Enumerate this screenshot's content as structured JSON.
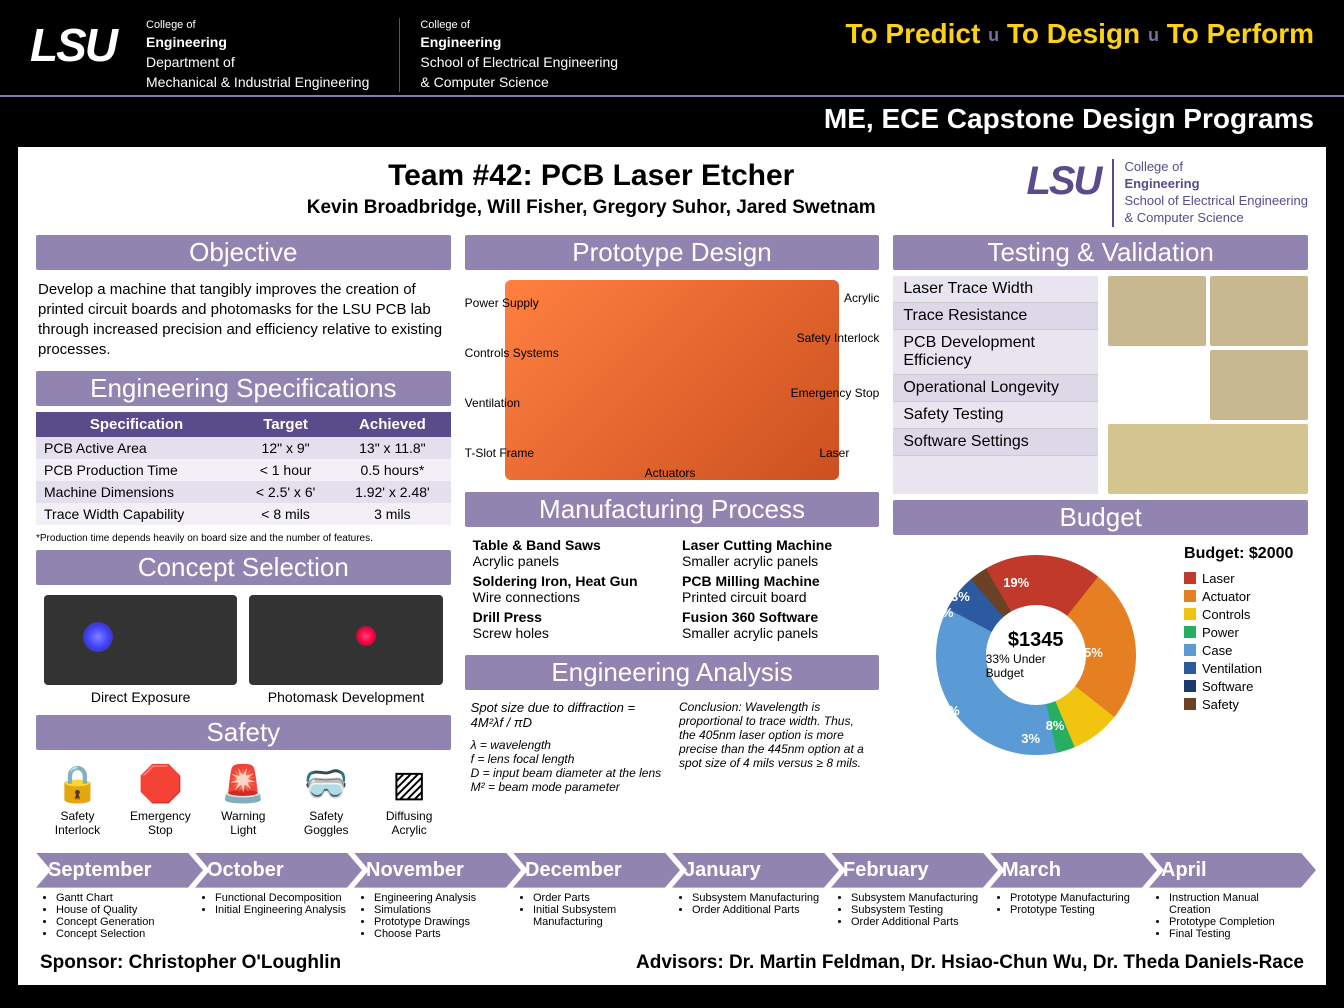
{
  "header": {
    "lsu": "LSU",
    "dept1": {
      "college": "College of",
      "name": "Engineering",
      "sub1": "Department of",
      "sub2": "Mechanical & Industrial Engineering"
    },
    "dept2": {
      "college": "College of",
      "name": "Engineering",
      "sub1": "School of Electrical Engineering",
      "sub2": "& Computer Science"
    },
    "tagline": {
      "t1": "To Predict",
      "t2": "To Design",
      "t3": "To Perform",
      "sep": "u"
    },
    "subheader": "ME, ECE Capstone Design Programs"
  },
  "team": {
    "title": "Team #42: PCB Laser Etcher",
    "members": "Kevin Broadbridge, Will Fisher, Gregory Suhor, Jared Swetnam"
  },
  "lsu_small": {
    "college": "College of",
    "name": "Engineering",
    "sub1": "School of Electrical Engineering",
    "sub2": "& Computer Science"
  },
  "sections": {
    "objective": "Objective",
    "engspec": "Engineering Specifications",
    "concept": "Concept Selection",
    "safety": "Safety",
    "prototype": "Prototype Design",
    "manufacturing": "Manufacturing Process",
    "analysis": "Engineering Analysis",
    "testing": "Testing & Validation",
    "budget": "Budget"
  },
  "objective_text": "Develop a machine that tangibly improves the creation of printed circuit boards and photomasks for the LSU PCB lab through increased precision and efficiency relative to existing processes.",
  "spec_table": {
    "headers": [
      "Specification",
      "Target",
      "Achieved"
    ],
    "rows": [
      [
        "PCB Active Area",
        "12\" x 9\"",
        "13\" x 11.8\""
      ],
      [
        "PCB Production Time",
        "< 1 hour",
        "0.5 hours*"
      ],
      [
        "Machine Dimensions",
        "< 2.5' x 6'",
        "1.92' x 2.48'"
      ],
      [
        "Trace Width Capability",
        "< 8 mils",
        "3 mils"
      ]
    ],
    "note": "*Production time depends heavily on board size and the number of features."
  },
  "concepts": {
    "c1": "Direct Exposure",
    "c2": "Photomask Development"
  },
  "safety_items": [
    {
      "icon": "🔒",
      "l1": "Safety",
      "l2": "Interlock"
    },
    {
      "icon": "🛑",
      "l1": "Emergency",
      "l2": "Stop"
    },
    {
      "icon": "🚨",
      "l1": "Warning",
      "l2": "Light"
    },
    {
      "icon": "🥽",
      "l1": "Safety",
      "l2": "Goggles"
    },
    {
      "icon": "▨",
      "l1": "Diffusing",
      "l2": "Acrylic"
    }
  ],
  "proto_labels": {
    "power": "Power Supply",
    "controls": "Controls Systems",
    "ventilation": "Ventilation",
    "tslot": "T-Slot Frame",
    "acrylic": "Acrylic",
    "interlock": "Safety Interlock",
    "estop": "Emergency Stop",
    "laser": "Laser",
    "actuators": "Actuators"
  },
  "manufacturing": {
    "left": [
      {
        "b": "Table & Band Saws",
        "d": "Acrylic panels"
      },
      {
        "b": "Soldering Iron, Heat Gun",
        "d": "Wire connections"
      },
      {
        "b": "Drill Press",
        "d": "Screw holes"
      }
    ],
    "right": [
      {
        "b": "Laser Cutting Machine",
        "d": "Smaller acrylic panels"
      },
      {
        "b": "PCB Milling Machine",
        "d": "Printed circuit board"
      },
      {
        "b": "Fusion 360 Software",
        "d": "Smaller acrylic panels"
      }
    ]
  },
  "analysis": {
    "formula": "Spot size due to diffraction = 4M²λf / πD",
    "vars": [
      "λ = wavelength",
      "f = lens focal length",
      "D = input beam diameter at the lens",
      "M² = beam mode parameter"
    ],
    "conclusion": "Conclusion: Wavelength is proportional to trace width. Thus, the 405nm laser option is more precise than the 445nm option at a spot size of 4 mils versus ≥ 8 mils."
  },
  "testing": [
    "Laser Trace Width",
    "Trace Resistance",
    "PCB Development Efficiency",
    "Operational Longevity",
    "Safety Testing",
    "Software Settings"
  ],
  "budget": {
    "total_label": "Budget: $2000",
    "amount": "$1345",
    "under": "33% Under Budget",
    "items": [
      {
        "label": "Laser",
        "pct": 19,
        "color": "#c0392b"
      },
      {
        "label": "Actuator",
        "pct": 25,
        "color": "#e67e22"
      },
      {
        "label": "Controls",
        "pct": 8,
        "color": "#f1c40f"
      },
      {
        "label": "Power",
        "pct": 3,
        "color": "#27ae60"
      },
      {
        "label": "Case",
        "pct": 36,
        "color": "#5b9bd5"
      },
      {
        "label": "Ventilation",
        "pct": 6,
        "color": "#2c5aa0"
      },
      {
        "label": "Software",
        "pct": 0,
        "color": "#1a3a6e"
      },
      {
        "label": "Safety",
        "pct": 3,
        "color": "#6b4226"
      }
    ]
  },
  "timeline": [
    {
      "month": "September",
      "items": [
        "Gantt Chart",
        "House of Quality",
        "Concept Generation",
        "Concept Selection"
      ]
    },
    {
      "month": "October",
      "items": [
        "Functional Decomposition",
        "Initial Engineering Analysis"
      ]
    },
    {
      "month": "November",
      "items": [
        "Engineering Analysis",
        "Simulations",
        "Prototype Drawings",
        "Choose Parts"
      ]
    },
    {
      "month": "December",
      "items": [
        "Order Parts",
        "Initial Subsystem Manufacturing"
      ]
    },
    {
      "month": "January",
      "items": [
        "Subsystem Manufacturing",
        "Order Additional Parts"
      ]
    },
    {
      "month": "February",
      "items": [
        "Subsystem Manufacturing",
        "Subsystem Testing",
        "Order Additional Parts"
      ]
    },
    {
      "month": "March",
      "items": [
        "Prototype Manufacturing",
        "Prototype Testing"
      ]
    },
    {
      "month": "April",
      "items": [
        "Instruction Manual Creation",
        "Prototype Completion",
        "Final Testing"
      ]
    }
  ],
  "footer": {
    "sponsor_label": "Sponsor:",
    "sponsor": "Christopher O'Loughlin",
    "advisors_label": "Advisors:",
    "advisors": "Dr. Martin Feldman, Dr. Hsiao-Chun Wu, Dr. Theda Daniels-Race"
  }
}
